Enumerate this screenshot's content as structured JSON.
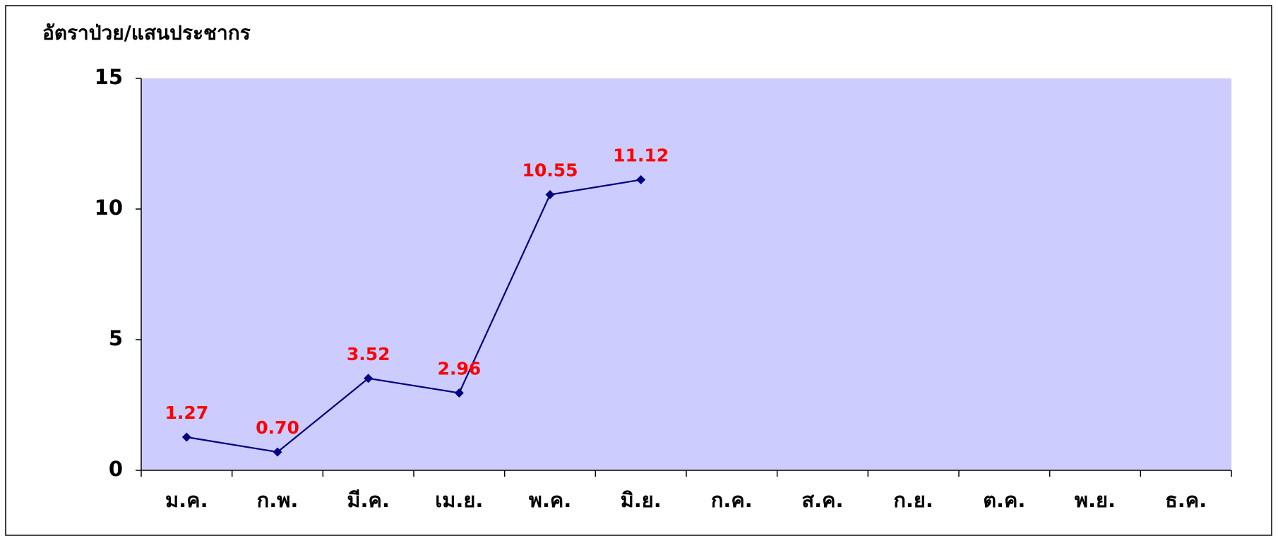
{
  "chart_data": {
    "type": "line",
    "title": "อัตราป่วย/แสนประชากร",
    "categories": [
      "ม.ค.",
      "ก.พ.",
      "มี.ค.",
      "เม.ย.",
      "พ.ค.",
      "มิ.ย.",
      "ก.ค.",
      "ส.ค.",
      "ก.ย.",
      "ต.ค.",
      "พ.ย.",
      "ธ.ค."
    ],
    "series": [
      {
        "name": "อัตราป่วย",
        "color": "#000080",
        "values": [
          1.27,
          0.7,
          3.52,
          2.96,
          10.55,
          11.12,
          null,
          null,
          null,
          null,
          null,
          null
        ],
        "value_labels": [
          "1.27",
          "0.70",
          "3.52",
          "2.96",
          "10.55",
          "11.12",
          null,
          null,
          null,
          null,
          null,
          null
        ]
      }
    ],
    "label_color": "#ff0000",
    "plot_background": "#ccccff",
    "ylim": [
      0,
      15
    ],
    "yticks": [
      0,
      5,
      10,
      15
    ],
    "grid": false
  }
}
